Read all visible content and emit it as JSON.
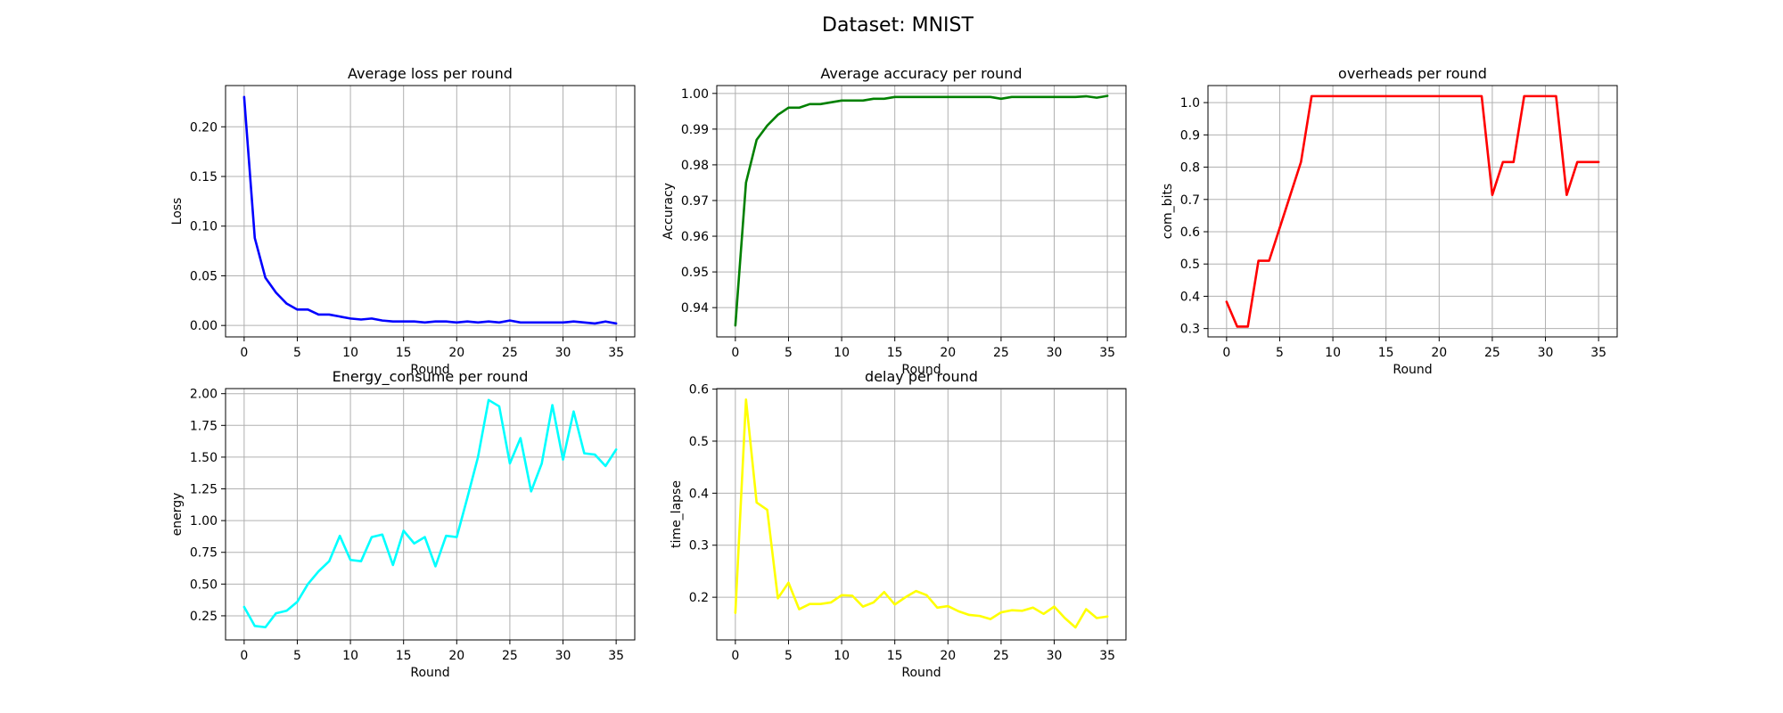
{
  "suptitle": "Dataset: MNIST",
  "colors": {
    "loss": "#0000ff",
    "accuracy": "#008000",
    "overheads": "#ff0000",
    "energy": "#00ffff",
    "delay": "#ffff00"
  },
  "chart_data": [
    {
      "id": "loss",
      "type": "line",
      "title": "Average loss per round",
      "xlabel": "Round",
      "ylabel": "Loss",
      "xlim": [
        -1.75,
        36.75
      ],
      "ylim": [
        -0.0115,
        0.2415
      ],
      "xticks": [
        0,
        5,
        10,
        15,
        20,
        25,
        30,
        35
      ],
      "yticks": [
        0.0,
        0.05,
        0.1,
        0.15,
        0.2
      ],
      "ytick_labels": [
        "0.00",
        "0.05",
        "0.10",
        "0.15",
        "0.20"
      ],
      "grid": true,
      "series": [
        {
          "color": "#0000ff",
          "x": [
            0,
            1,
            2,
            3,
            4,
            5,
            6,
            7,
            8,
            9,
            10,
            11,
            12,
            13,
            14,
            15,
            16,
            17,
            18,
            19,
            20,
            21,
            22,
            23,
            24,
            25,
            26,
            27,
            28,
            29,
            30,
            31,
            32,
            33,
            34,
            35
          ],
          "y": [
            0.23,
            0.088,
            0.048,
            0.033,
            0.022,
            0.016,
            0.016,
            0.011,
            0.011,
            0.009,
            0.007,
            0.006,
            0.007,
            0.005,
            0.004,
            0.004,
            0.004,
            0.003,
            0.004,
            0.004,
            0.003,
            0.004,
            0.003,
            0.004,
            0.003,
            0.005,
            0.003,
            0.003,
            0.003,
            0.003,
            0.003,
            0.004,
            0.003,
            0.002,
            0.004,
            0.002
          ]
        }
      ]
    },
    {
      "id": "accuracy",
      "type": "line",
      "title": "Average accuracy per round",
      "xlabel": "Round",
      "ylabel": "Accuracy",
      "xlim": [
        -1.75,
        36.75
      ],
      "ylim": [
        0.9318,
        1.0022
      ],
      "xticks": [
        0,
        5,
        10,
        15,
        20,
        25,
        30,
        35
      ],
      "yticks": [
        0.94,
        0.95,
        0.96,
        0.97,
        0.98,
        0.99,
        1.0
      ],
      "ytick_labels": [
        "0.94",
        "0.95",
        "0.96",
        "0.97",
        "0.98",
        "0.99",
        "1.00"
      ],
      "grid": true,
      "series": [
        {
          "color": "#008000",
          "x": [
            0,
            1,
            2,
            3,
            4,
            5,
            6,
            7,
            8,
            9,
            10,
            11,
            12,
            13,
            14,
            15,
            16,
            17,
            18,
            19,
            20,
            21,
            22,
            23,
            24,
            25,
            26,
            27,
            28,
            29,
            30,
            31,
            32,
            33,
            34,
            35
          ],
          "y": [
            0.935,
            0.975,
            0.987,
            0.991,
            0.994,
            0.996,
            0.996,
            0.997,
            0.997,
            0.9975,
            0.998,
            0.998,
            0.998,
            0.9985,
            0.9985,
            0.999,
            0.999,
            0.999,
            0.999,
            0.999,
            0.999,
            0.999,
            0.999,
            0.999,
            0.999,
            0.9985,
            0.999,
            0.999,
            0.999,
            0.999,
            0.999,
            0.999,
            0.999,
            0.9992,
            0.9988,
            0.9993
          ]
        }
      ]
    },
    {
      "id": "overheads",
      "type": "line",
      "title": "overheads per round",
      "xlabel": "Round",
      "ylabel": "com_bits",
      "xlim": [
        -1.75,
        36.75
      ],
      "ylim": [
        0.2742,
        1.0528
      ],
      "xticks": [
        0,
        5,
        10,
        15,
        20,
        25,
        30,
        35
      ],
      "yticks": [
        0.3,
        0.4,
        0.5,
        0.6,
        0.7,
        0.8,
        0.9,
        1.0
      ],
      "ytick_labels": [
        "0.3",
        "0.4",
        "0.5",
        "0.6",
        "0.7",
        "0.8",
        "0.9",
        "1.0"
      ],
      "grid": true,
      "series": [
        {
          "color": "#ff0000",
          "x": [
            0,
            1,
            2,
            3,
            4,
            5,
            6,
            7,
            8,
            9,
            10,
            11,
            12,
            13,
            14,
            15,
            16,
            17,
            18,
            19,
            20,
            21,
            22,
            23,
            24,
            25,
            26,
            27,
            28,
            29,
            30,
            31,
            32,
            33,
            34,
            35
          ],
          "y": [
            0.383,
            0.306,
            0.306,
            0.51,
            0.51,
            0.612,
            0.714,
            0.816,
            1.02,
            1.02,
            1.02,
            1.02,
            1.02,
            1.02,
            1.02,
            1.02,
            1.02,
            1.02,
            1.02,
            1.02,
            1.02,
            1.02,
            1.02,
            1.02,
            1.02,
            0.714,
            0.816,
            0.816,
            1.02,
            1.02,
            1.02,
            1.02,
            0.714,
            0.816,
            0.816,
            0.816
          ]
        }
      ]
    },
    {
      "id": "energy",
      "type": "line",
      "title": "Energy_consume per round",
      "xlabel": "Round",
      "ylabel": "energy",
      "xlim": [
        -1.75,
        36.75
      ],
      "ylim": [
        0.06,
        2.04
      ],
      "xticks": [
        0,
        5,
        10,
        15,
        20,
        25,
        30,
        35
      ],
      "yticks": [
        0.25,
        0.5,
        0.75,
        1.0,
        1.25,
        1.5,
        1.75,
        2.0
      ],
      "ytick_labels": [
        "0.25",
        "0.50",
        "0.75",
        "1.00",
        "1.25",
        "1.50",
        "1.75",
        "2.00"
      ],
      "grid": true,
      "series": [
        {
          "color": "#00ffff",
          "x": [
            0,
            1,
            2,
            3,
            4,
            5,
            6,
            7,
            8,
            9,
            10,
            11,
            12,
            13,
            14,
            15,
            16,
            17,
            18,
            19,
            20,
            21,
            22,
            23,
            24,
            25,
            26,
            27,
            28,
            29,
            30,
            31,
            32,
            33,
            34,
            35
          ],
          "y": [
            0.32,
            0.17,
            0.16,
            0.27,
            0.29,
            0.36,
            0.5,
            0.6,
            0.68,
            0.88,
            0.69,
            0.68,
            0.87,
            0.89,
            0.65,
            0.92,
            0.82,
            0.87,
            0.64,
            0.88,
            0.87,
            1.18,
            1.5,
            1.95,
            1.9,
            1.45,
            1.65,
            1.23,
            1.45,
            1.91,
            1.48,
            1.86,
            1.53,
            1.52,
            1.43,
            1.56
          ]
        }
      ]
    },
    {
      "id": "delay",
      "type": "line",
      "title": "delay per round",
      "xlabel": "Round",
      "ylabel": "time_lapse",
      "xlim": [
        -1.75,
        36.75
      ],
      "ylim": [
        0.118,
        0.601
      ],
      "xticks": [
        0,
        5,
        10,
        15,
        20,
        25,
        30,
        35
      ],
      "yticks": [
        0.2,
        0.3,
        0.4,
        0.5,
        0.6
      ],
      "ytick_labels": [
        "0.2",
        "0.3",
        "0.4",
        "0.5",
        "0.6"
      ],
      "grid": true,
      "series": [
        {
          "color": "#ffff00",
          "x": [
            0,
            1,
            2,
            3,
            4,
            5,
            6,
            7,
            8,
            9,
            10,
            11,
            12,
            13,
            14,
            15,
            16,
            17,
            18,
            19,
            20,
            21,
            22,
            23,
            24,
            25,
            26,
            27,
            28,
            29,
            30,
            31,
            32,
            33,
            34,
            35
          ],
          "y": [
            0.17,
            0.58,
            0.382,
            0.368,
            0.198,
            0.228,
            0.177,
            0.187,
            0.187,
            0.19,
            0.204,
            0.203,
            0.182,
            0.19,
            0.21,
            0.186,
            0.2,
            0.212,
            0.204,
            0.18,
            0.183,
            0.173,
            0.166,
            0.164,
            0.158,
            0.171,
            0.175,
            0.174,
            0.18,
            0.168,
            0.182,
            0.16,
            0.142,
            0.177,
            0.16,
            0.163
          ]
        }
      ]
    }
  ]
}
